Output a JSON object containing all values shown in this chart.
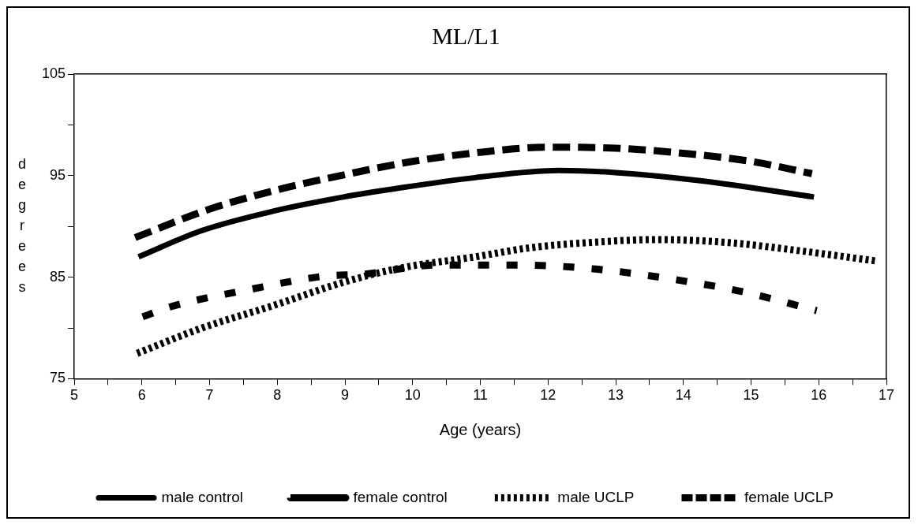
{
  "chart_data": {
    "type": "line",
    "title": "ML/L1",
    "xlabel": "Age (years)",
    "ylabel": "degrees",
    "xlim": [
      5,
      17
    ],
    "xticks": [
      5,
      {
        "value": 5.5,
        "label": null
      },
      6,
      {
        "value": 6.5,
        "label": null
      },
      7,
      {
        "value": 7.5,
        "label": null
      },
      8,
      {
        "value": 8.5,
        "label": null
      },
      9,
      {
        "value": 9.5,
        "label": null
      },
      10,
      {
        "value": 10.5,
        "label": null
      },
      11,
      {
        "value": 11.5,
        "label": null
      },
      12,
      {
        "value": 12.5,
        "label": null
      },
      13,
      {
        "value": 13.5,
        "label": null
      },
      14,
      {
        "value": 14.5,
        "label": null
      },
      15,
      {
        "value": 15.5,
        "label": null
      },
      16,
      {
        "value": 16.5,
        "label": null
      },
      17
    ],
    "ylim": [
      75,
      105
    ],
    "yticks": [
      75,
      {
        "value": 80,
        "label": null
      },
      85,
      {
        "value": 90,
        "label": null
      },
      95,
      {
        "value": 100,
        "label": null
      },
      105
    ],
    "grid": false,
    "legend": "bottom",
    "marker": "none",
    "series": [
      {
        "name": "male control",
        "color": "#000000",
        "line_style": "solid",
        "x": [
          5.95,
          6.89,
          7.94,
          8.98,
          9.82,
          10.92,
          12.16,
          13.0,
          14.25,
          15.93
        ],
        "values": [
          87.0,
          89.6,
          91.5,
          92.9,
          93.8,
          94.8,
          95.5,
          95.3,
          94.5,
          92.9
        ]
      },
      {
        "name": "female control",
        "color": "#000000",
        "line_style": "dashed",
        "x": [
          5.9,
          7,
          8,
          9,
          10,
          11,
          12,
          13,
          14,
          15,
          15.9
        ],
        "values": [
          88.9,
          91.7,
          93.6,
          95.1,
          96.4,
          97.3,
          97.8,
          97.7,
          97.2,
          96.4,
          95.2
        ]
      },
      {
        "name": "male UCLP",
        "color": "#000000",
        "line_style": "dotted",
        "x": [
          5.93,
          6.89,
          7.94,
          8.98,
          9.82,
          10.92,
          11.74,
          12.58,
          13.63,
          14.67,
          15.72,
          16.84
        ],
        "values": [
          77.5,
          80.0,
          82.2,
          84.5,
          85.9,
          87.0,
          87.9,
          88.4,
          88.7,
          88.4,
          87.6,
          86.6
        ]
      },
      {
        "name": "female UCLP",
        "color": "#000000",
        "line_style": "dashed",
        "x": [
          6.01,
          6.43,
          7.6,
          8.7,
          9.28,
          10.37,
          11.53,
          12.7,
          13.84,
          14.92,
          15.97
        ],
        "values": [
          81.1,
          82.1,
          83.8,
          85.1,
          85.3,
          86.2,
          86.2,
          85.8,
          84.8,
          83.5,
          81.7
        ]
      }
    ]
  }
}
